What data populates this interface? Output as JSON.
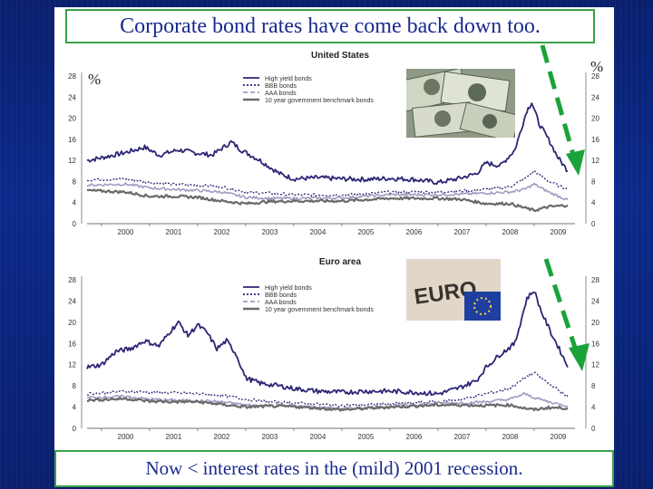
{
  "slide": {
    "title": "Corporate bond rates have come back down too.",
    "caption": "Now < interest rates in the (mild) 2001 recession.",
    "pct_left": "%",
    "pct_right": "%"
  },
  "colors": {
    "high_yield": "#2b2674",
    "bbb": "#2b2674",
    "aaa": "#9f9cc0",
    "govt": "#6a6a6a",
    "arrow": "#19a33a"
  },
  "chart_data": [
    {
      "type": "line",
      "title": "United States",
      "xlabel": "",
      "ylabel": "%",
      "x_ticks": [
        "2000",
        "2001",
        "2002",
        "2003",
        "2004",
        "2005",
        "2006",
        "2007",
        "2008",
        "2009"
      ],
      "y_ticks": [
        0,
        4,
        8,
        12,
        16,
        20,
        24,
        28
      ],
      "ylim": [
        0,
        28
      ],
      "xlim": [
        1999.7,
        2009.85
      ],
      "legend": [
        "High yield bonds",
        "BBB bonds",
        "AAA bonds",
        "10 year government benchmark bonds"
      ],
      "series": [
        {
          "name": "High yield bonds",
          "x": [
            1999.7,
            2000.0,
            2000.5,
            2000.9,
            2001.2,
            2001.6,
            2001.9,
            2002.3,
            2002.7,
            2002.9,
            2003.3,
            2003.7,
            2004.0,
            2004.5,
            2005.0,
            2005.5,
            2006.0,
            2006.5,
            2007.0,
            2007.4,
            2007.8,
            2008.0,
            2008.3,
            2008.6,
            2008.85,
            2008.95,
            2009.1,
            2009.3,
            2009.5,
            2009.7
          ],
          "values": [
            12.0,
            12.5,
            13.5,
            14.5,
            13.0,
            14.0,
            13.5,
            13.0,
            15.5,
            14.0,
            12.0,
            9.5,
            8.5,
            8.7,
            8.5,
            8.4,
            8.6,
            8.4,
            7.8,
            8.5,
            9.5,
            11.5,
            11.0,
            14.0,
            21.5,
            23.0,
            19.0,
            16.0,
            12.5,
            10.0
          ]
        },
        {
          "name": "BBB bonds",
          "x": [
            1999.7,
            2000.5,
            2001.0,
            2001.5,
            2002.0,
            2002.5,
            2003.0,
            2003.5,
            2004.0,
            2005.0,
            2006.0,
            2007.0,
            2007.5,
            2008.0,
            2008.5,
            2008.8,
            2009.0,
            2009.3,
            2009.7
          ],
          "values": [
            8.3,
            8.5,
            7.8,
            7.5,
            7.3,
            7.0,
            6.0,
            5.8,
            5.5,
            5.4,
            6.0,
            6.0,
            6.2,
            6.5,
            7.0,
            8.5,
            10.0,
            8.0,
            6.5
          ]
        },
        {
          "name": "AAA bonds",
          "x": [
            1999.7,
            2000.5,
            2001.0,
            2001.5,
            2002.0,
            2002.5,
            2003.0,
            2003.5,
            2004.0,
            2005.0,
            2006.0,
            2007.0,
            2007.5,
            2008.0,
            2008.5,
            2008.8,
            2009.0,
            2009.3,
            2009.7
          ],
          "values": [
            7.3,
            7.5,
            6.8,
            6.5,
            6.3,
            6.0,
            5.0,
            4.8,
            4.8,
            4.9,
            5.5,
            5.5,
            5.6,
            5.8,
            6.0,
            6.5,
            7.5,
            6.0,
            4.5
          ]
        },
        {
          "name": "10 year government benchmark bonds",
          "x": [
            1999.7,
            2000.5,
            2001.0,
            2001.5,
            2002.0,
            2002.5,
            2003.0,
            2003.5,
            2004.0,
            2005.0,
            2006.0,
            2007.0,
            2007.5,
            2008.0,
            2008.5,
            2008.8,
            2009.0,
            2009.3,
            2009.7
          ],
          "values": [
            6.3,
            6.0,
            5.2,
            5.2,
            5.0,
            4.3,
            3.8,
            4.2,
            4.3,
            4.3,
            4.8,
            4.8,
            4.6,
            3.8,
            3.8,
            3.0,
            2.5,
            3.2,
            3.5
          ]
        }
      ]
    },
    {
      "type": "line",
      "title": "Euro area",
      "xlabel": "",
      "ylabel": "%",
      "x_ticks": [
        "2000",
        "2001",
        "2002",
        "2003",
        "2004",
        "2005",
        "2006",
        "2007",
        "2008",
        "2009"
      ],
      "y_ticks": [
        0,
        4,
        8,
        12,
        16,
        20,
        24,
        28
      ],
      "ylim": [
        0,
        28
      ],
      "xlim": [
        1999.7,
        2009.85
      ],
      "legend": [
        "High yield bonds",
        "BBB bonds",
        "AAA bonds",
        "10 year government benchmark bonds"
      ],
      "series": [
        {
          "name": "High yield bonds",
          "x": [
            1999.7,
            2000.0,
            2000.3,
            2000.6,
            2000.9,
            2001.2,
            2001.4,
            2001.6,
            2001.8,
            2002.0,
            2002.2,
            2002.4,
            2002.6,
            2002.8,
            2003.0,
            2003.3,
            2003.7,
            2004.0,
            2004.5,
            2005.0,
            2005.5,
            2006.0,
            2006.5,
            2007.0,
            2007.4,
            2007.8,
            2008.0,
            2008.3,
            2008.6,
            2008.85,
            2009.0,
            2009.15,
            2009.35,
            2009.55,
            2009.7
          ],
          "values": [
            11.5,
            12.0,
            14.5,
            15.0,
            16.5,
            15.5,
            18.0,
            20.0,
            17.5,
            19.5,
            18.0,
            15.0,
            16.5,
            14.0,
            9.5,
            8.5,
            8.0,
            7.5,
            7.0,
            6.8,
            7.0,
            7.0,
            6.8,
            6.5,
            7.5,
            9.0,
            11.5,
            14.0,
            16.0,
            24.5,
            26.0,
            22.0,
            18.0,
            14.5,
            11.5
          ]
        },
        {
          "name": "BBB bonds",
          "x": [
            1999.7,
            2000.5,
            2001.0,
            2001.5,
            2002.0,
            2002.5,
            2003.0,
            2003.5,
            2004.0,
            2005.0,
            2006.0,
            2007.0,
            2007.5,
            2008.0,
            2008.5,
            2008.8,
            2009.0,
            2009.3,
            2009.7
          ],
          "values": [
            6.5,
            7.0,
            6.8,
            6.7,
            6.5,
            6.2,
            5.5,
            5.0,
            4.8,
            4.3,
            4.6,
            5.0,
            5.5,
            6.5,
            7.5,
            9.5,
            10.5,
            8.5,
            6.0
          ]
        },
        {
          "name": "AAA bonds",
          "x": [
            1999.7,
            2000.5,
            2001.0,
            2001.5,
            2002.0,
            2002.5,
            2003.0,
            2003.5,
            2004.0,
            2005.0,
            2006.0,
            2007.0,
            2007.5,
            2008.0,
            2008.5,
            2008.8,
            2009.0,
            2009.3,
            2009.7
          ],
          "values": [
            5.8,
            6.0,
            5.5,
            5.3,
            5.2,
            5.0,
            4.4,
            4.2,
            4.2,
            3.7,
            4.2,
            4.7,
            4.8,
            5.0,
            5.5,
            6.5,
            5.8,
            5.0,
            4.2
          ]
        },
        {
          "name": "10 year government benchmark bonds",
          "x": [
            1999.7,
            2000.5,
            2001.0,
            2001.5,
            2002.0,
            2002.5,
            2003.0,
            2003.5,
            2004.0,
            2005.0,
            2006.0,
            2007.0,
            2007.5,
            2008.0,
            2008.5,
            2008.8,
            2009.0,
            2009.3,
            2009.7
          ],
          "values": [
            5.3,
            5.6,
            5.1,
            5.0,
            5.0,
            4.5,
            4.0,
            4.2,
            4.1,
            3.5,
            4.0,
            4.4,
            4.4,
            4.3,
            4.4,
            3.8,
            3.5,
            3.9,
            3.8
          ]
        }
      ]
    }
  ]
}
